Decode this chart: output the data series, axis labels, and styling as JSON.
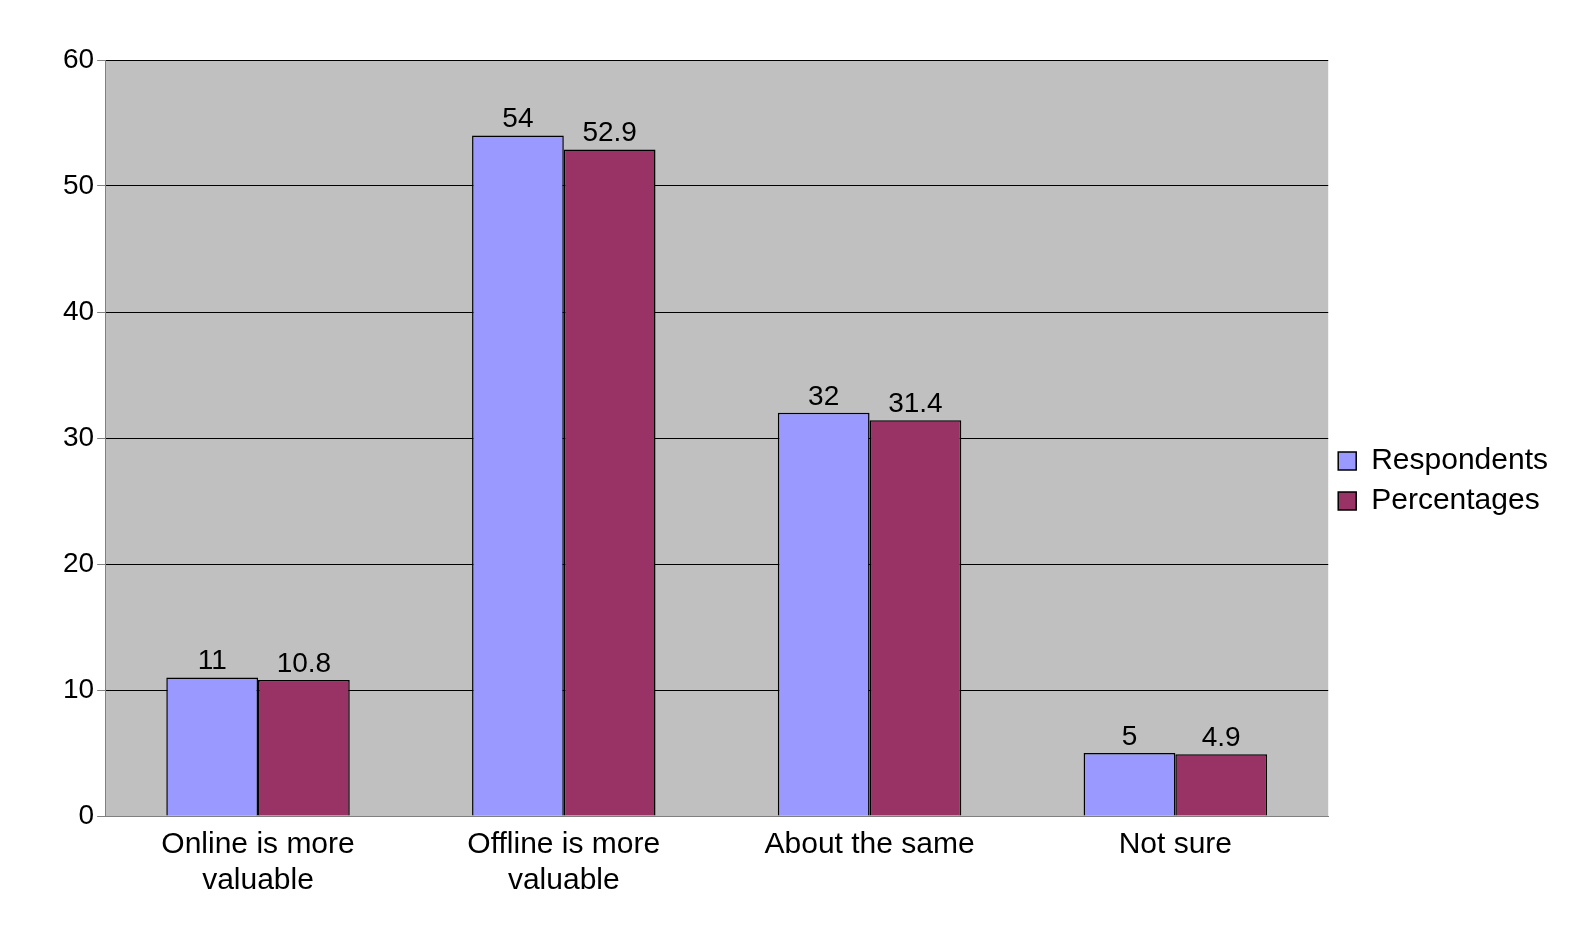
{
  "chart_data": {
    "type": "bar",
    "categories": [
      "Online is more valuable",
      "Offline is more valuable",
      "About the same",
      "Not sure"
    ],
    "series": [
      {
        "name": "Respondents",
        "color": "#9999ff",
        "values": [
          11,
          54,
          32,
          5
        ]
      },
      {
        "name": "Percentages",
        "color": "#993366",
        "values": [
          10.8,
          52.9,
          31.4,
          4.9
        ]
      }
    ],
    "ylim": [
      0,
      60
    ],
    "yticks": [
      0,
      10,
      20,
      30,
      40,
      50,
      60
    ],
    "grid": "y",
    "legend": "right",
    "data_labels": true
  }
}
